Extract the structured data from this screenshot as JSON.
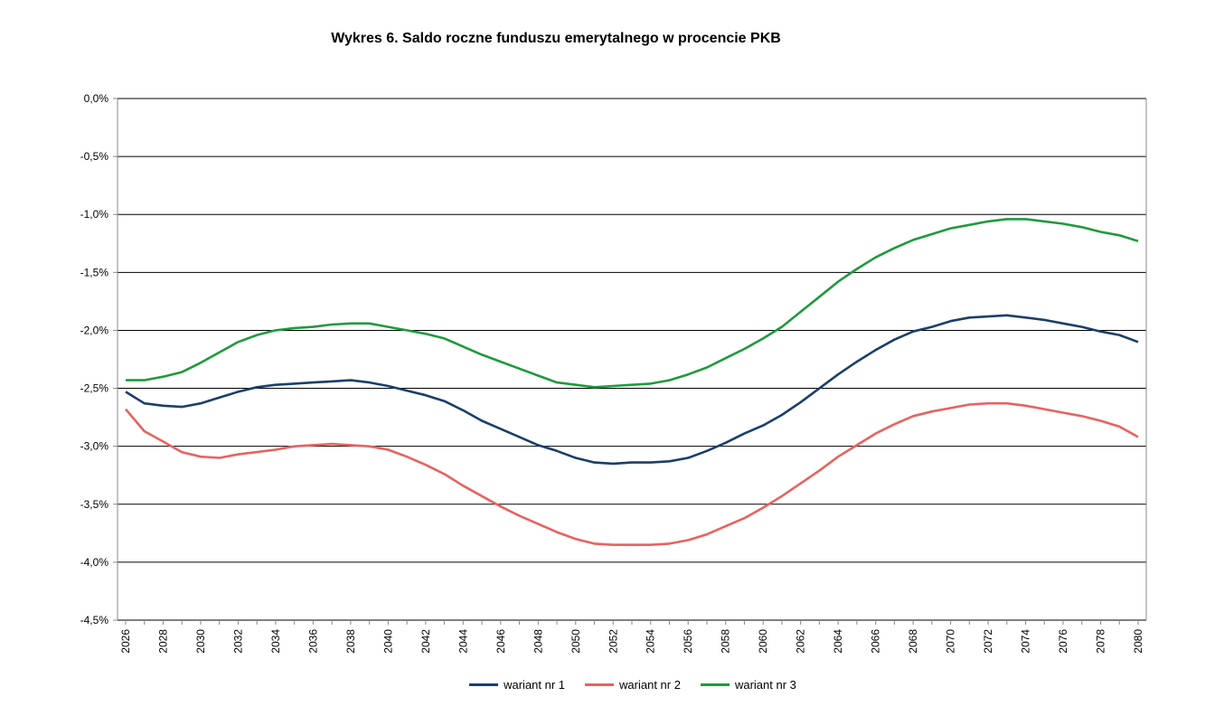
{
  "chart_data": {
    "type": "line",
    "title": "Wykres 6. Saldo roczne funduszu emerytalnego w procencie PKB",
    "xlabel": "",
    "ylabel": "",
    "ylim": [
      -4.5,
      0
    ],
    "yticks": [
      "0,0%",
      "-0,5%",
      "-1,0%",
      "-1,5%",
      "-2,0%",
      "-2,5%",
      "-3,0%",
      "-3,5%",
      "-4,0%",
      "-4,5%"
    ],
    "ytick_values": [
      0,
      -0.5,
      -1,
      -1.5,
      -2,
      -2.5,
      -3,
      -3.5,
      -4,
      -4.5
    ],
    "grid": "horizontal",
    "legend_position": "bottom",
    "x": [
      2026,
      2027,
      2028,
      2029,
      2030,
      2031,
      2032,
      2033,
      2034,
      2035,
      2036,
      2037,
      2038,
      2039,
      2040,
      2041,
      2042,
      2043,
      2044,
      2045,
      2046,
      2047,
      2048,
      2049,
      2050,
      2051,
      2052,
      2053,
      2054,
      2055,
      2056,
      2057,
      2058,
      2059,
      2060,
      2061,
      2062,
      2063,
      2064,
      2065,
      2066,
      2067,
      2068,
      2069,
      2070,
      2071,
      2072,
      2073,
      2074,
      2075,
      2076,
      2077,
      2078,
      2079,
      2080
    ],
    "xtick_step": 2,
    "series": [
      {
        "name": "wariant nr 1",
        "color": "#1a3f6b",
        "values": [
          -2.53,
          -2.63,
          -2.65,
          -2.66,
          -2.63,
          -2.58,
          -2.53,
          -2.49,
          -2.47,
          -2.46,
          -2.45,
          -2.44,
          -2.43,
          -2.45,
          -2.48,
          -2.52,
          -2.56,
          -2.61,
          -2.69,
          -2.78,
          -2.85,
          -2.92,
          -2.99,
          -3.04,
          -3.1,
          -3.14,
          -3.15,
          -3.14,
          -3.14,
          -3.13,
          -3.1,
          -3.04,
          -2.97,
          -2.89,
          -2.82,
          -2.73,
          -2.62,
          -2.5,
          -2.38,
          -2.27,
          -2.17,
          -2.08,
          -2.01,
          -1.97,
          -1.92,
          -1.89,
          -1.88,
          -1.87,
          -1.89,
          -1.91,
          -1.94,
          -1.97,
          -2.01,
          -2.04,
          -2.1
        ]
      },
      {
        "name": "wariant nr 2",
        "color": "#e8625f",
        "values": [
          -2.68,
          -2.87,
          -2.96,
          -3.05,
          -3.09,
          -3.1,
          -3.07,
          -3.05,
          -3.03,
          -3.0,
          -2.99,
          -2.98,
          -2.99,
          -3.0,
          -3.03,
          -3.09,
          -3.16,
          -3.24,
          -3.34,
          -3.43,
          -3.52,
          -3.6,
          -3.67,
          -3.74,
          -3.8,
          -3.84,
          -3.85,
          -3.85,
          -3.85,
          -3.84,
          -3.81,
          -3.76,
          -3.69,
          -3.62,
          -3.53,
          -3.43,
          -3.32,
          -3.21,
          -3.09,
          -2.99,
          -2.89,
          -2.81,
          -2.74,
          -2.7,
          -2.67,
          -2.64,
          -2.63,
          -2.63,
          -2.65,
          -2.68,
          -2.71,
          -2.74,
          -2.78,
          -2.83,
          -2.92
        ]
      },
      {
        "name": "wariant nr 3",
        "color": "#1f9a3d",
        "values": [
          -2.43,
          -2.43,
          -2.4,
          -2.36,
          -2.28,
          -2.19,
          -2.1,
          -2.04,
          -2.0,
          -1.98,
          -1.97,
          -1.95,
          -1.94,
          -1.94,
          -1.97,
          -2.0,
          -2.03,
          -2.07,
          -2.14,
          -2.21,
          -2.27,
          -2.33,
          -2.39,
          -2.45,
          -2.47,
          -2.49,
          -2.48,
          -2.47,
          -2.46,
          -2.43,
          -2.38,
          -2.32,
          -2.24,
          -2.16,
          -2.07,
          -1.97,
          -1.84,
          -1.71,
          -1.58,
          -1.47,
          -1.37,
          -1.29,
          -1.22,
          -1.17,
          -1.12,
          -1.09,
          -1.06,
          -1.04,
          -1.04,
          -1.06,
          -1.08,
          -1.11,
          -1.15,
          -1.18,
          -1.23
        ]
      }
    ]
  }
}
